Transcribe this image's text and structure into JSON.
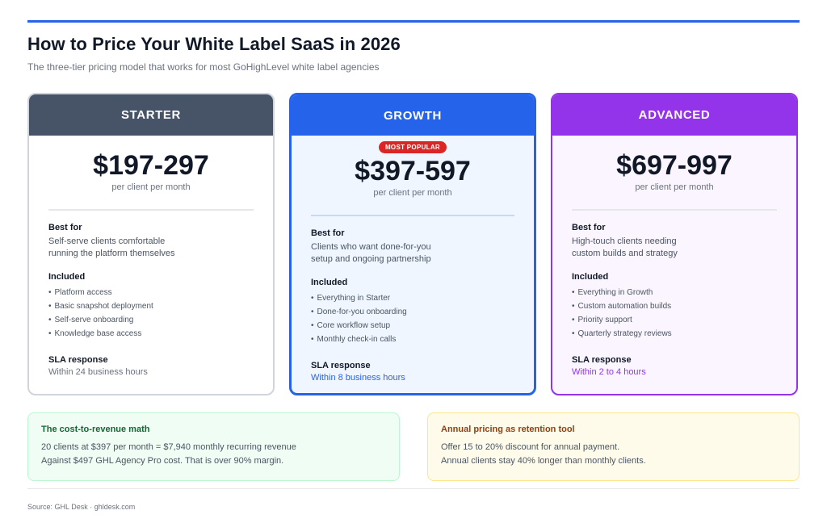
{
  "title": "How to Price Your White Label SaaS in 2026",
  "subtitle": "The three-tier pricing model that works for most GoHighLevel white label agencies",
  "colors": {
    "accent": "#2563eb",
    "starter": "#475467",
    "growth": "#2563eb",
    "advanced": "#9333ea",
    "badge": "#dc2626"
  },
  "tiers": [
    {
      "name": "STARTER",
      "price": "$197-297",
      "period": "per client per month",
      "best_for_label": "Best for",
      "best_for_lines": [
        "Self-serve clients comfortable",
        "running the platform themselves"
      ],
      "included_label": "Included",
      "included": [
        "Platform access",
        "Basic snapshot deployment",
        "Self-serve onboarding",
        "Knowledge base access"
      ],
      "sla_label": "SLA response",
      "sla": "Within 24 business hours"
    },
    {
      "name": "GROWTH",
      "badge": "MOST POPULAR",
      "price": "$397-597",
      "period": "per client per month",
      "best_for_label": "Best for",
      "best_for_lines": [
        "Clients who want done-for-you",
        "setup and ongoing partnership"
      ],
      "included_label": "Included",
      "included": [
        "Everything in Starter",
        "Done-for-you onboarding",
        "Core workflow setup",
        "Monthly check-in calls"
      ],
      "sla_label": "SLA response",
      "sla": "Within 8 business hours"
    },
    {
      "name": "ADVANCED",
      "price": "$697-997",
      "period": "per client per month",
      "best_for_label": "Best for",
      "best_for_lines": [
        "High-touch clients needing",
        "custom builds and strategy"
      ],
      "included_label": "Included",
      "included": [
        "Everything in Growth",
        "Custom automation builds",
        "Priority support",
        "Quarterly strategy reviews"
      ],
      "sla_label": "SLA response",
      "sla": "Within 2 to 4 hours"
    }
  ],
  "notes": [
    {
      "title": "The cost-to-revenue math",
      "lines": [
        "20 clients at $397 per month = $7,940 monthly recurring revenue",
        "Against $497 GHL Agency Pro cost. That is over 90% margin."
      ]
    },
    {
      "title": "Annual pricing as retention tool",
      "lines": [
        "Offer 15 to 20% discount for annual payment.",
        "Annual clients stay 40% longer than monthly clients."
      ]
    }
  ],
  "source": "Source: GHL Desk · ghldesk.com"
}
